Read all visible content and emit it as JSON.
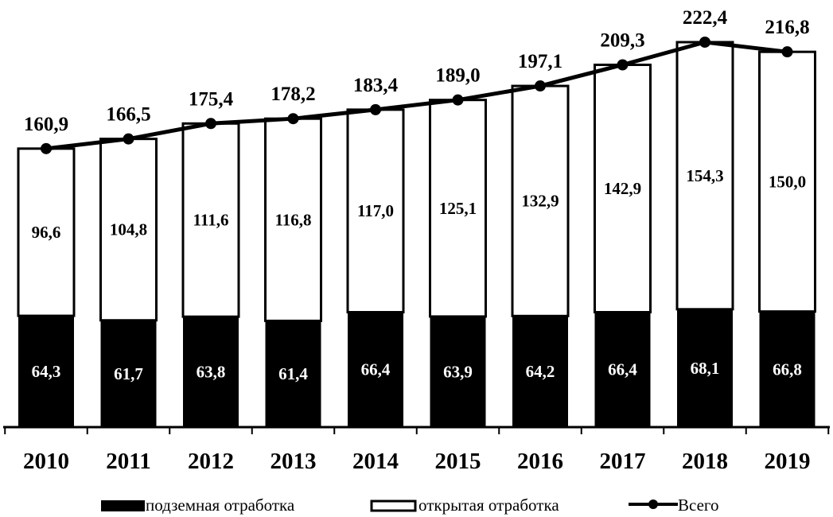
{
  "chart_data": {
    "type": "bar",
    "stacked": true,
    "categories": [
      "2010",
      "2011",
      "2012",
      "2013",
      "2014",
      "2015",
      "2016",
      "2017",
      "2018",
      "2019"
    ],
    "series": [
      {
        "name": "подземная отработка",
        "kind": "bar",
        "color": "#000000",
        "values": [
          64.3,
          61.7,
          63.8,
          61.4,
          66.4,
          63.9,
          64.2,
          66.4,
          68.1,
          66.8
        ],
        "labels": [
          "64,3",
          "61,7",
          "63,8",
          "61,4",
          "66,4",
          "63,9",
          "64,2",
          "66,4",
          "68,1",
          "66,8"
        ]
      },
      {
        "name": "открытая отработка",
        "kind": "bar",
        "color": "#ffffff",
        "values": [
          96.6,
          104.8,
          111.6,
          116.8,
          117.0,
          125.1,
          132.9,
          142.9,
          154.3,
          150.0
        ],
        "labels": [
          "96,6",
          "104,8",
          "111,6",
          "116,8",
          "117,0",
          "125,1",
          "132,9",
          "142,9",
          "154,3",
          "150,0"
        ]
      },
      {
        "name": "Всего",
        "kind": "line",
        "color": "#000000",
        "values": [
          160.9,
          166.5,
          175.4,
          178.2,
          183.4,
          189.0,
          197.1,
          209.3,
          222.4,
          216.8
        ],
        "labels": [
          "160,9",
          "166,5",
          "175,4",
          "178,2",
          "183,4",
          "189,0",
          "197,1",
          "209,3",
          "222,4",
          "216,8"
        ]
      }
    ],
    "ylim": [
      0,
      222.4
    ],
    "grid": false,
    "legend": "bottom"
  }
}
